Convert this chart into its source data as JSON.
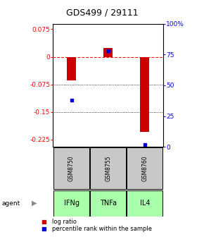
{
  "title": "GDS499 / 29111",
  "samples": [
    "GSM8750",
    "GSM8755",
    "GSM8760"
  ],
  "agents": [
    "IFNg",
    "TNFa",
    "IL4"
  ],
  "log_ratios": [
    -0.065,
    0.025,
    -0.205
  ],
  "percentile_ranks": [
    0.38,
    0.78,
    0.02
  ],
  "ylim": [
    -0.245,
    0.09
  ],
  "y_left_ticks": [
    0.075,
    0,
    -0.075,
    -0.15,
    -0.225
  ],
  "y_right_ticks": [
    100,
    75,
    50,
    25,
    0
  ],
  "zero_line": 0.0,
  "hgrid_lines": [
    -0.075,
    -0.15
  ],
  "bar_color": "#cc0000",
  "dot_color": "#0000cc",
  "sample_box_color": "#c8c8c8",
  "agent_box_color": "#aaffaa",
  "legend_log_color": "#cc0000",
  "legend_pct_color": "#0000cc",
  "title_fontsize": 9,
  "tick_fontsize": 6.5,
  "bar_width": 0.25
}
